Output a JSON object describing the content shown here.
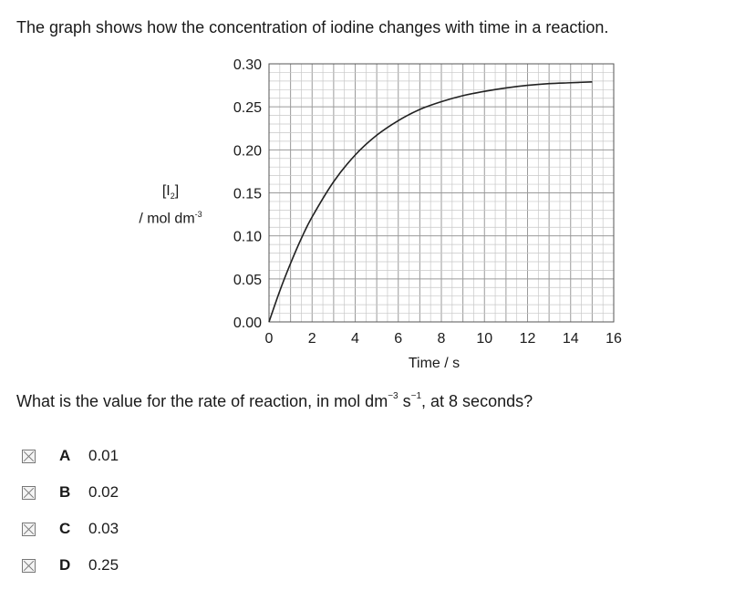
{
  "intro": "The graph shows how the concentration of iodine changes with time in a reaction.",
  "question": {
    "before": "What is the value for the rate of reaction, in mol dm",
    "exp1": "−3",
    "mid": " s",
    "exp2": "−1",
    "after": ", at 8 seconds?"
  },
  "y_axis_label": {
    "line1_open": "[I",
    "line1_sub": "2",
    "line1_close": "]",
    "line2": "/ mol dm",
    "line2_sup": "-3"
  },
  "chart_data": {
    "type": "line",
    "xlabel": "Time / s",
    "xlim": [
      0,
      16
    ],
    "ylim": [
      0,
      0.3
    ],
    "x_ticks": [
      "0",
      "2",
      "4",
      "6",
      "8",
      "10",
      "12",
      "14",
      "16"
    ],
    "y_ticks": [
      "0.00",
      "0.05",
      "0.10",
      "0.15",
      "0.20",
      "0.25",
      "0.30"
    ],
    "grid": true,
    "series": [
      {
        "x": [
          0,
          0.5,
          1,
          1.5,
          2,
          3,
          4,
          5,
          6,
          7,
          8,
          9,
          10,
          11,
          12,
          13,
          14,
          15
        ],
        "y": [
          0.0,
          0.036,
          0.068,
          0.097,
          0.122,
          0.163,
          0.194,
          0.217,
          0.234,
          0.247,
          0.256,
          0.263,
          0.268,
          0.272,
          0.275,
          0.277,
          0.278,
          0.279
        ]
      }
    ]
  },
  "options": [
    {
      "letter": "A",
      "value": "0.01"
    },
    {
      "letter": "B",
      "value": "0.02"
    },
    {
      "letter": "C",
      "value": "0.03"
    },
    {
      "letter": "D",
      "value": "0.25"
    }
  ]
}
